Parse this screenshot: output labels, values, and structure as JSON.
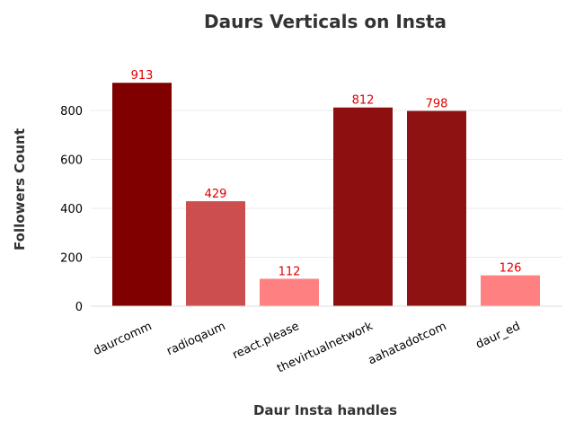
{
  "chart_data": {
    "type": "bar",
    "title": "Daurs Verticals on Insta",
    "xlabel": "Daur Insta handles",
    "ylabel": "Followers Count",
    "categories": [
      "daurcomm",
      "radioqaum",
      "react.please",
      "thevirtualnetwork",
      "aahatadotcom",
      "daur_ed"
    ],
    "values": [
      913,
      429,
      112,
      812,
      798,
      126
    ],
    "bar_colors": [
      "#800000",
      "#cd4e4e",
      "#ff8080",
      "#8e0f0f",
      "#8e1212",
      "#ff8080"
    ],
    "data_label_color": "#e00000",
    "ylim": [
      0,
      1000
    ],
    "yticks": [
      0,
      200,
      400,
      600,
      800
    ],
    "grid": true,
    "legend": "none"
  }
}
